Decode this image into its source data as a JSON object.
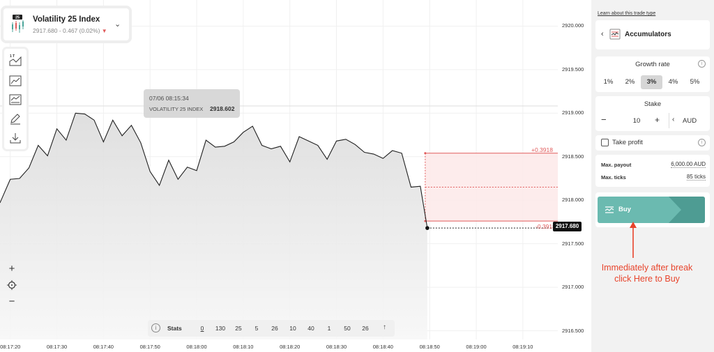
{
  "symbol": {
    "badge": "25",
    "name": "Volatility 25 Index",
    "price_change": "2917.680 - 0.467 (0.02%)"
  },
  "tools": {
    "tick_label": "1 T"
  },
  "tooltip": {
    "datetime": "07/06 08:15:34",
    "name": "VOLATILITY 25 INDEX",
    "value": "2918.602"
  },
  "barriers": {
    "upper_label": "+0.3918",
    "lower_label": "-0.3918"
  },
  "current_price": "2917.680",
  "stats": {
    "label": "Stats",
    "values": [
      "0",
      "130",
      "25",
      "5",
      "26",
      "10",
      "40",
      "1",
      "50",
      "26"
    ]
  },
  "chart_data": {
    "type": "line",
    "title": "",
    "ylim": [
      2916.4,
      2920.3
    ],
    "y_ticks": [
      "2920.000",
      "2919.500",
      "2919.000",
      "2918.500",
      "2918.000",
      "2917.500",
      "2917.000",
      "2916.500"
    ],
    "y_tick_values": [
      2920.0,
      2919.5,
      2919.0,
      2918.5,
      2918.0,
      2917.5,
      2917.0,
      2916.5
    ],
    "x_ticks": [
      "08:17:20",
      "08:17:30",
      "08:17:40",
      "08:17:50",
      "08:18:00",
      "08:18:10",
      "08:18:20",
      "08:18:30",
      "08:18:40",
      "08:18:50",
      "08:19:00",
      "08:19:10"
    ],
    "x_tick_values": [
      0,
      10,
      20,
      30,
      40,
      50,
      60,
      70,
      80,
      90,
      100,
      110
    ],
    "xlim": [
      -2.2,
      117.5
    ],
    "series": [
      {
        "x": [
          -2.2,
          0,
          2,
          4,
          6,
          8,
          10,
          12,
          14,
          16,
          18,
          20,
          22,
          24,
          26,
          28,
          30,
          32,
          34,
          36,
          38,
          40,
          42,
          44,
          46,
          48,
          50,
          52,
          54,
          56,
          58,
          60,
          62,
          64,
          66,
          68,
          70,
          72,
          74,
          76,
          78,
          80,
          82,
          84,
          86,
          88,
          89.5
        ],
        "values": [
          2917.97,
          2918.24,
          2918.25,
          2918.37,
          2918.63,
          2918.51,
          2918.82,
          2918.69,
          2919.0,
          2918.99,
          2918.92,
          2918.67,
          2918.92,
          2918.74,
          2918.86,
          2918.66,
          2918.33,
          2918.17,
          2918.46,
          2918.24,
          2918.38,
          2918.34,
          2918.69,
          2918.61,
          2918.62,
          2918.67,
          2918.78,
          2918.85,
          2918.63,
          2918.59,
          2918.62,
          2918.44,
          2918.73,
          2918.68,
          2918.63,
          2918.47,
          2918.68,
          2918.7,
          2918.64,
          2918.55,
          2918.53,
          2918.48,
          2918.57,
          2918.54,
          2918.15,
          2918.16,
          2917.68
        ]
      }
    ],
    "barrier_band": {
      "upper": 2918.54,
      "lower": 2917.76,
      "from_x": 88,
      "to_x": 117.5
    },
    "grid": true,
    "colors": {
      "line": "#1f1f1f",
      "area": "#e6e6e6",
      "band_fill": "#fde9e9",
      "band_line": "#e05a5a"
    }
  },
  "panel": {
    "learn_link": "Learn about this trade type",
    "trade_type": "Accumulators",
    "growth_rate": {
      "title": "Growth rate",
      "options": [
        "1%",
        "2%",
        "3%",
        "4%",
        "5%"
      ],
      "selected": "3%"
    },
    "stake": {
      "title": "Stake",
      "minus": "−",
      "value": "10",
      "plus": "+",
      "currency": "AUD"
    },
    "take_profit": {
      "label": "Take profit"
    },
    "max_payout": {
      "label": "Max. payout",
      "value": "6,000.00 AUD"
    },
    "max_ticks": {
      "label": "Max. ticks",
      "value": "85 ticks"
    },
    "buy": {
      "label": "Buy",
      "color": "#6bbab0"
    }
  },
  "annotation": {
    "line1": "Immediately after break",
    "line2": "click Here to Buy",
    "color": "#e8442c"
  },
  "zoom": {
    "in": "+",
    "out": "−"
  }
}
